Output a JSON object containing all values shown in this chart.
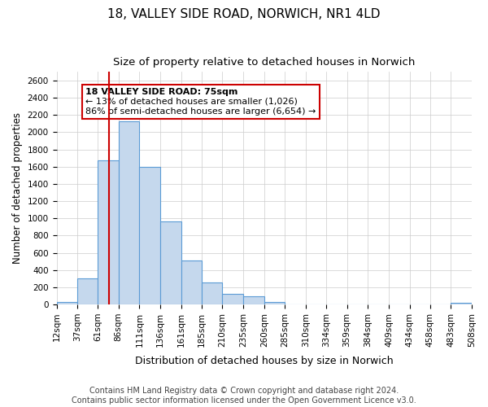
{
  "title": "18, VALLEY SIDE ROAD, NORWICH, NR1 4LD",
  "subtitle": "Size of property relative to detached houses in Norwich",
  "xlabel": "Distribution of detached houses by size in Norwich",
  "ylabel": "Number of detached properties",
  "bar_color": "#c5d8ed",
  "bar_edge_color": "#5b9bd5",
  "background_color": "#ffffff",
  "grid_color": "#cccccc",
  "vline_x": 75,
  "vline_color": "#cc0000",
  "annotation_title": "18 VALLEY SIDE ROAD: 75sqm",
  "annotation_line1": "← 13% of detached houses are smaller (1,026)",
  "annotation_line2": "86% of semi-detached houses are larger (6,654) →",
  "annotation_box_color": "#ffffff",
  "annotation_box_edge": "#cc0000",
  "bin_edges": [
    12,
    37,
    61,
    86,
    111,
    136,
    161,
    185,
    210,
    235,
    260,
    285,
    310,
    334,
    359,
    384,
    409,
    434,
    458,
    483,
    508
  ],
  "bin_counts": [
    25,
    300,
    1675,
    2130,
    1600,
    960,
    510,
    255,
    120,
    95,
    30,
    5,
    5,
    5,
    5,
    5,
    5,
    5,
    5,
    20
  ],
  "ylim": [
    0,
    2700
  ],
  "yticks": [
    0,
    200,
    400,
    600,
    800,
    1000,
    1200,
    1400,
    1600,
    1800,
    2000,
    2200,
    2400,
    2600
  ],
  "xtick_labels": [
    "12sqm",
    "37sqm",
    "61sqm",
    "86sqm",
    "111sqm",
    "136sqm",
    "161sqm",
    "185sqm",
    "210sqm",
    "235sqm",
    "260sqm",
    "285sqm",
    "310sqm",
    "334sqm",
    "359sqm",
    "384sqm",
    "409sqm",
    "434sqm",
    "458sqm",
    "483sqm",
    "508sqm"
  ],
  "footer1": "Contains HM Land Registry data © Crown copyright and database right 2024.",
  "footer2": "Contains public sector information licensed under the Open Government Licence v3.0.",
  "title_fontsize": 11,
  "subtitle_fontsize": 9.5,
  "xlabel_fontsize": 9,
  "ylabel_fontsize": 8.5,
  "tick_fontsize": 7.5,
  "annotation_fontsize": 8,
  "footer_fontsize": 7
}
